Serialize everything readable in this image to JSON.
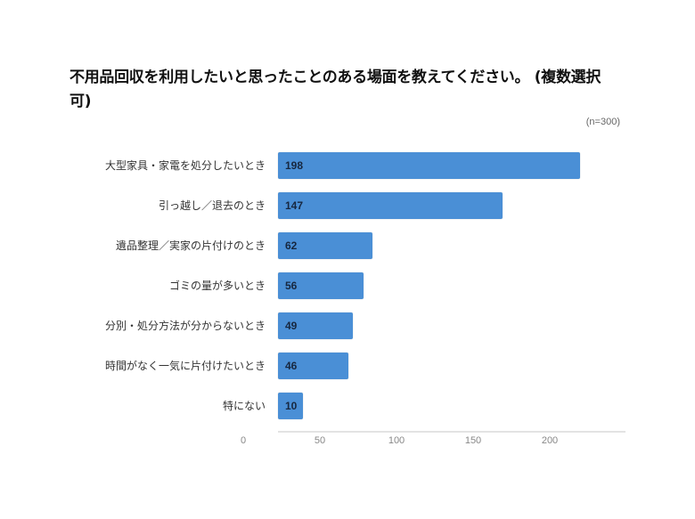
{
  "title": "不用品回収を利用したいと思ったことのある場面を教えてください。 (複数選択可)",
  "note": "(n=300)",
  "colors": {
    "bar": "#4a8fd6",
    "value_label": "#17273f",
    "axis": "#e3e3e3"
  },
  "chart_data": {
    "type": "bar",
    "orientation": "horizontal",
    "title": "不用品回収を利用したいと思ったことのある場面を教えてください。 (複数選択可)",
    "subtitle": "(n=300)",
    "categories": [
      "大型家具・家電を処分したいとき",
      "引っ越し／退去のとき",
      "遺品整理／実家の片付けのとき",
      "ゴミの量が多いとき",
      "分別・処分方法が分からないとき",
      "時間がなく一気に片付けたいとき",
      "特にない"
    ],
    "values": [
      198,
      147,
      62,
      56,
      49,
      46,
      10
    ],
    "xlabel": "",
    "ylabel": "",
    "xticks": [
      "0",
      "50",
      "100",
      "150",
      "200"
    ],
    "xlim": [
      0,
      225
    ],
    "grid": false,
    "legend": null,
    "data_labels": true
  }
}
